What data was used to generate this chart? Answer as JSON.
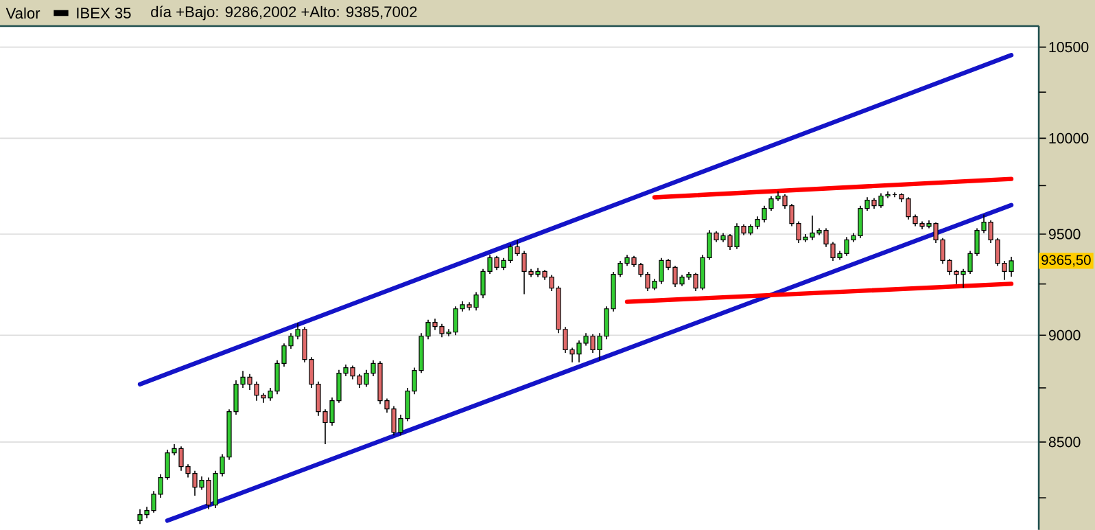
{
  "chart_data": {
    "type": "candlestick",
    "title": "Valor",
    "annotations": [
      "día +Bajo: 9286,2002 +Alto: 9385,7002",
      "9365,50"
    ],
    "legend": "top left",
    "log": true,
    "grid": "y",
    "ylim": [
      8110,
      10620
    ],
    "yticks": [
      8500,
      9000,
      9500,
      10000,
      10500
    ],
    "categories": [
      null,
      null,
      null,
      null,
      null,
      null,
      null,
      null,
      null,
      null,
      null,
      null,
      null,
      null,
      null,
      null,
      null,
      null,
      null,
      null,
      null,
      null,
      null,
      null,
      null,
      null,
      null,
      null,
      null,
      null,
      null,
      null,
      null,
      null,
      null,
      null,
      null,
      null,
      null,
      null,
      null,
      null,
      null,
      null,
      null,
      null,
      null,
      null,
      null,
      null,
      null,
      null,
      null,
      null,
      null,
      null,
      null,
      null,
      null,
      null,
      null,
      null,
      null,
      null,
      null,
      null,
      null,
      null,
      null,
      null,
      null,
      null,
      null,
      null,
      null,
      null,
      null,
      null,
      null,
      null,
      null,
      null,
      null,
      null,
      null,
      null,
      null,
      null,
      null,
      null,
      null,
      null,
      null,
      null,
      null,
      null,
      null,
      null,
      null,
      null,
      null,
      null,
      null,
      null,
      null,
      null,
      null,
      null,
      null,
      null,
      null,
      null,
      null,
      null,
      null,
      null,
      null,
      null,
      null,
      null,
      null,
      null,
      null,
      null,
      null,
      null,
      null,
      null
    ],
    "series": [
      {
        "name": "IBEX 35",
        "color": "#000000",
        "ohlc": [
          [
            8150,
            8200,
            8135,
            8176
          ],
          [
            8176,
            8210,
            8160,
            8194
          ],
          [
            8194,
            8280,
            8185,
            8266
          ],
          [
            8266,
            8355,
            8250,
            8340
          ],
          [
            8340,
            8465,
            8330,
            8451
          ],
          [
            8451,
            8490,
            8440,
            8470
          ],
          [
            8470,
            8480,
            8370,
            8389
          ],
          [
            8389,
            8400,
            8340,
            8358
          ],
          [
            8358,
            8370,
            8260,
            8297
          ],
          [
            8297,
            8345,
            8285,
            8328
          ],
          [
            8328,
            8340,
            8200,
            8218
          ],
          [
            8218,
            8370,
            8205,
            8358
          ],
          [
            8358,
            8445,
            8345,
            8432
          ],
          [
            8432,
            8650,
            8420,
            8639
          ],
          [
            8639,
            8785,
            8625,
            8767
          ],
          [
            8767,
            8830,
            8750,
            8800
          ],
          [
            8800,
            8815,
            8740,
            8767
          ],
          [
            8767,
            8780,
            8690,
            8716
          ],
          [
            8716,
            8725,
            8680,
            8703
          ],
          [
            8703,
            8750,
            8690,
            8735
          ],
          [
            8735,
            8880,
            8720,
            8865
          ],
          [
            8865,
            8960,
            8850,
            8949
          ],
          [
            8949,
            9010,
            8935,
            8995
          ],
          [
            8995,
            9060,
            8980,
            9028
          ],
          [
            9028,
            9040,
            8870,
            8884
          ],
          [
            8884,
            8895,
            8750,
            8767
          ],
          [
            8767,
            8780,
            8620,
            8639
          ],
          [
            8639,
            8650,
            8490,
            8589
          ],
          [
            8589,
            8705,
            8575,
            8690
          ],
          [
            8690,
            8835,
            8680,
            8819
          ],
          [
            8819,
            8860,
            8805,
            8845
          ],
          [
            8845,
            8855,
            8790,
            8806
          ],
          [
            8806,
            8815,
            8750,
            8767
          ],
          [
            8767,
            8835,
            8755,
            8819
          ],
          [
            8819,
            8880,
            8805,
            8865
          ],
          [
            8865,
            8875,
            8675,
            8690
          ],
          [
            8690,
            8700,
            8635,
            8652
          ],
          [
            8652,
            8665,
            8530,
            8545
          ],
          [
            8545,
            8625,
            8530,
            8608
          ],
          [
            8608,
            8750,
            8595,
            8735
          ],
          [
            8735,
            8845,
            8720,
            8832
          ],
          [
            8832,
            9010,
            8820,
            8995
          ],
          [
            8995,
            9075,
            8980,
            9062
          ],
          [
            9062,
            9080,
            9025,
            9042
          ],
          [
            9042,
            9055,
            8990,
            9008
          ],
          [
            9008,
            9030,
            8995,
            9015
          ],
          [
            9015,
            9140,
            9000,
            9128
          ],
          [
            9128,
            9165,
            9115,
            9148
          ],
          [
            9148,
            9160,
            9120,
            9135
          ],
          [
            9135,
            9210,
            9120,
            9196
          ],
          [
            9196,
            9325,
            9180,
            9312
          ],
          [
            9312,
            9395,
            9300,
            9381
          ],
          [
            9381,
            9390,
            9320,
            9333
          ],
          [
            9333,
            9380,
            9320,
            9367
          ],
          [
            9367,
            9450,
            9355,
            9436
          ],
          [
            9436,
            9470,
            9390,
            9402
          ],
          [
            9402,
            9415,
            9200,
            9312
          ],
          [
            9312,
            9325,
            9285,
            9298
          ],
          [
            9298,
            9330,
            9285,
            9312
          ],
          [
            9312,
            9320,
            9270,
            9284
          ],
          [
            9284,
            9295,
            9215,
            9230
          ],
          [
            9230,
            9240,
            9010,
            9028
          ],
          [
            9028,
            9040,
            8915,
            8930
          ],
          [
            8930,
            8940,
            8870,
            8910
          ],
          [
            8910,
            8975,
            8870,
            8962
          ],
          [
            8962,
            9010,
            8950,
            8995
          ],
          [
            8995,
            9005,
            8915,
            8930
          ],
          [
            8930,
            9010,
            8880,
            8995
          ],
          [
            8995,
            9140,
            8980,
            9128
          ],
          [
            9128,
            9310,
            9115,
            9298
          ],
          [
            9298,
            9365,
            9285,
            9353
          ],
          [
            9353,
            9395,
            9340,
            9381
          ],
          [
            9381,
            9390,
            9335,
            9347
          ],
          [
            9347,
            9355,
            9285,
            9298
          ],
          [
            9298,
            9310,
            9215,
            9230
          ],
          [
            9230,
            9275,
            9220,
            9264
          ],
          [
            9264,
            9380,
            9250,
            9367
          ],
          [
            9367,
            9375,
            9320,
            9333
          ],
          [
            9333,
            9340,
            9235,
            9250
          ],
          [
            9250,
            9295,
            9240,
            9284
          ],
          [
            9284,
            9310,
            9270,
            9298
          ],
          [
            9298,
            9305,
            9215,
            9230
          ],
          [
            9230,
            9395,
            9220,
            9381
          ],
          [
            9381,
            9520,
            9370,
            9506
          ],
          [
            9506,
            9515,
            9460,
            9471
          ],
          [
            9471,
            9505,
            9460,
            9492
          ],
          [
            9492,
            9500,
            9420,
            9436
          ],
          [
            9436,
            9555,
            9425,
            9540
          ],
          [
            9540,
            9550,
            9495,
            9506
          ],
          [
            9506,
            9550,
            9495,
            9540
          ],
          [
            9540,
            9590,
            9525,
            9575
          ],
          [
            9575,
            9645,
            9560,
            9632
          ],
          [
            9632,
            9695,
            9620,
            9681
          ],
          [
            9681,
            9720,
            9670,
            9696
          ],
          [
            9696,
            9705,
            9630,
            9646
          ],
          [
            9646,
            9655,
            9540,
            9554
          ],
          [
            9554,
            9565,
            9455,
            9471
          ],
          [
            9471,
            9500,
            9460,
            9485
          ],
          [
            9485,
            9595,
            9470,
            9506
          ],
          [
            9506,
            9530,
            9495,
            9519
          ],
          [
            9519,
            9530,
            9435,
            9450
          ],
          [
            9450,
            9460,
            9365,
            9381
          ],
          [
            9381,
            9415,
            9370,
            9402
          ],
          [
            9402,
            9485,
            9390,
            9471
          ],
          [
            9471,
            9505,
            9460,
            9492
          ],
          [
            9492,
            9645,
            9480,
            9632
          ],
          [
            9632,
            9690,
            9620,
            9674
          ],
          [
            9674,
            9685,
            9630,
            9646
          ],
          [
            9646,
            9710,
            9635,
            9696
          ],
          [
            9696,
            9720,
            9685,
            9703
          ],
          [
            9703,
            9715,
            9690,
            9703
          ],
          [
            9703,
            9710,
            9665,
            9681
          ],
          [
            9681,
            9690,
            9575,
            9589
          ],
          [
            9589,
            9600,
            9540,
            9554
          ],
          [
            9554,
            9565,
            9525,
            9540
          ],
          [
            9540,
            9570,
            9530,
            9554
          ],
          [
            9554,
            9560,
            9455,
            9471
          ],
          [
            9471,
            9480,
            9350,
            9367
          ],
          [
            9367,
            9375,
            9295,
            9312
          ],
          [
            9312,
            9320,
            9250,
            9298
          ],
          [
            9298,
            9325,
            9230,
            9312
          ],
          [
            9312,
            9415,
            9300,
            9402
          ],
          [
            9402,
            9530,
            9390,
            9519
          ],
          [
            9519,
            9600,
            9505,
            9561
          ],
          [
            9561,
            9570,
            9455,
            9471
          ],
          [
            9471,
            9480,
            9340,
            9353
          ],
          [
            9353,
            9365,
            9270,
            9312
          ],
          [
            9312,
            9385.7,
            9286.2,
            9365.5
          ]
        ]
      },
      {
        "type": "line",
        "color": "#1414c8",
        "values": [
          8767,
          null,
          null,
          null,
          null,
          null,
          null,
          null,
          null,
          null,
          null,
          null,
          null,
          null,
          null,
          null,
          null,
          null,
          null,
          null,
          null,
          null,
          null,
          null,
          null,
          null,
          null,
          null,
          null,
          null,
          null,
          null,
          null,
          null,
          null,
          null,
          null,
          null,
          null,
          null,
          null,
          null,
          null,
          null,
          null,
          null,
          null,
          null,
          null,
          null,
          null,
          null,
          null,
          null,
          null,
          null,
          null,
          null,
          null,
          null,
          null,
          null,
          null,
          null,
          null,
          null,
          null,
          null,
          null,
          null,
          null,
          null,
          null,
          null,
          null,
          null,
          null,
          null,
          null,
          null,
          null,
          null,
          null,
          null,
          null,
          null,
          null,
          null,
          null,
          null,
          null,
          null,
          null,
          null,
          null,
          null,
          null,
          null,
          null,
          null,
          null,
          null,
          null,
          null,
          null,
          null,
          null,
          null,
          null,
          null,
          null,
          null,
          null,
          null,
          null,
          null,
          null,
          null,
          null,
          null,
          null,
          null,
          null,
          null,
          null,
          null,
          null,
          10455
        ]
      },
      {
        "type": "line",
        "color": "#1414c8",
        "values": [
          null,
          null,
          null,
          null,
          8150,
          null,
          null,
          null,
          null,
          null,
          null,
          null,
          null,
          null,
          null,
          null,
          null,
          null,
          null,
          null,
          null,
          null,
          null,
          null,
          null,
          null,
          null,
          null,
          null,
          null,
          null,
          null,
          null,
          null,
          null,
          null,
          null,
          null,
          null,
          null,
          null,
          null,
          null,
          null,
          null,
          null,
          null,
          null,
          null,
          null,
          null,
          null,
          null,
          null,
          null,
          null,
          null,
          null,
          null,
          null,
          null,
          null,
          null,
          null,
          null,
          null,
          null,
          null,
          null,
          null,
          null,
          null,
          null,
          null,
          null,
          null,
          null,
          null,
          null,
          null,
          null,
          null,
          null,
          null,
          null,
          null,
          null,
          null,
          null,
          null,
          null,
          null,
          null,
          null,
          null,
          null,
          null,
          null,
          null,
          null,
          null,
          null,
          null,
          null,
          null,
          null,
          null,
          null,
          null,
          null,
          null,
          null,
          null,
          null,
          null,
          null,
          null,
          null,
          null,
          null,
          null,
          null,
          null,
          null,
          null,
          null,
          null,
          9649
        ]
      },
      {
        "type": "line",
        "color": "#ff0000",
        "values": [
          null,
          null,
          null,
          null,
          null,
          null,
          null,
          null,
          null,
          null,
          null,
          null,
          null,
          null,
          null,
          null,
          null,
          null,
          null,
          null,
          null,
          null,
          null,
          null,
          null,
          null,
          null,
          null,
          null,
          null,
          null,
          null,
          null,
          null,
          null,
          null,
          null,
          null,
          null,
          null,
          null,
          null,
          null,
          null,
          null,
          null,
          null,
          null,
          null,
          null,
          null,
          null,
          null,
          null,
          null,
          null,
          null,
          null,
          null,
          null,
          null,
          null,
          null,
          null,
          null,
          null,
          null,
          null,
          null,
          null,
          null,
          null,
          null,
          null,
          null,
          9689,
          null,
          null,
          null,
          null,
          null,
          null,
          null,
          null,
          null,
          null,
          null,
          null,
          null,
          null,
          null,
          null,
          null,
          null,
          null,
          null,
          null,
          null,
          null,
          null,
          null,
          null,
          null,
          null,
          null,
          null,
          null,
          null,
          null,
          null,
          null,
          null,
          null,
          null,
          null,
          null,
          null,
          null,
          null,
          null,
          null,
          null,
          null,
          null,
          null,
          null,
          null,
          9785
        ]
      },
      {
        "type": "line",
        "color": "#ff0000",
        "values": [
          null,
          null,
          null,
          null,
          null,
          null,
          null,
          null,
          null,
          null,
          null,
          null,
          null,
          null,
          null,
          null,
          null,
          null,
          null,
          null,
          null,
          null,
          null,
          null,
          null,
          null,
          null,
          null,
          null,
          null,
          null,
          null,
          null,
          null,
          null,
          null,
          null,
          null,
          null,
          null,
          null,
          null,
          null,
          null,
          null,
          null,
          null,
          null,
          null,
          null,
          null,
          null,
          null,
          null,
          null,
          null,
          null,
          null,
          null,
          null,
          null,
          null,
          null,
          null,
          null,
          null,
          null,
          null,
          null,
          null,
          null,
          9162,
          null,
          null,
          null,
          null,
          null,
          null,
          null,
          null,
          null,
          null,
          null,
          null,
          null,
          null,
          null,
          null,
          null,
          null,
          null,
          null,
          null,
          null,
          null,
          null,
          null,
          null,
          null,
          null,
          null,
          null,
          null,
          null,
          null,
          null,
          null,
          null,
          null,
          null,
          null,
          null,
          null,
          null,
          null,
          null,
          null,
          null,
          null,
          null,
          null,
          null,
          null,
          null,
          null,
          null,
          null,
          9251
        ]
      }
    ]
  }
}
